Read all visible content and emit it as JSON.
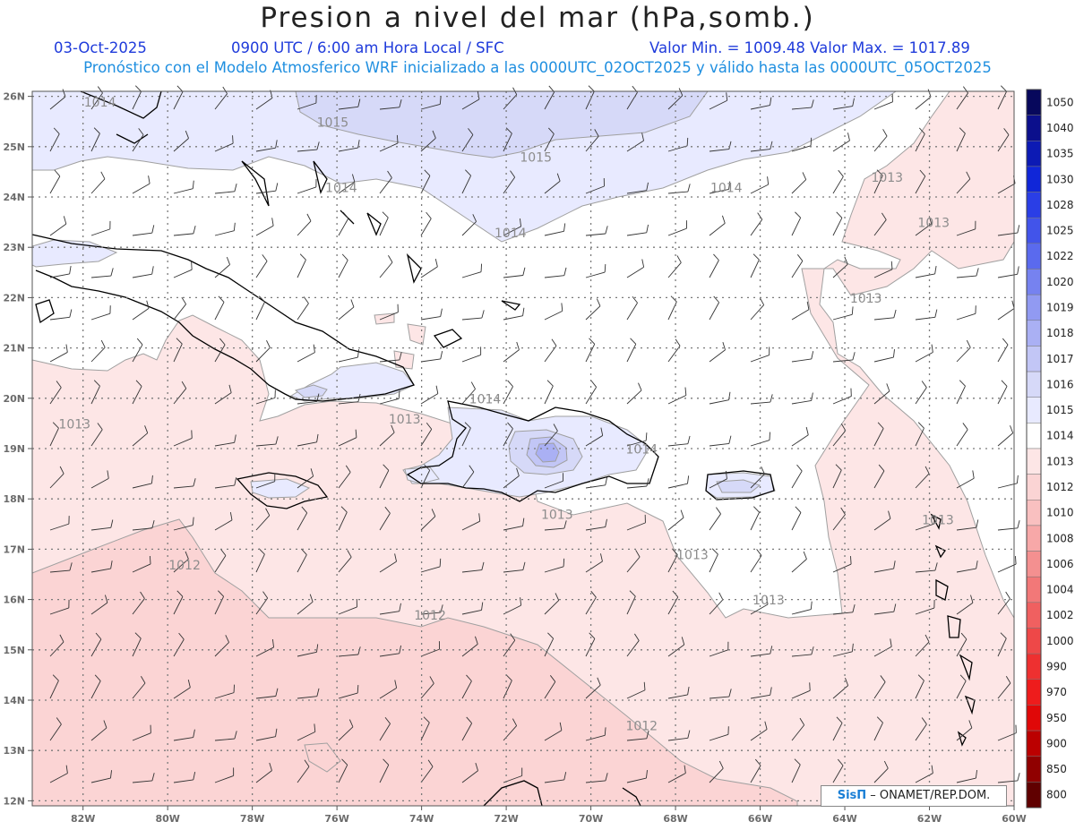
{
  "title": "Presion a nivel del mar (hPa,somb.)",
  "date": "03-Oct-2025",
  "time_info": "0900 UTC / 6:00 am Hora Local / SFC",
  "min_max": "Valor Min. = 1009.48  Valor Max. = 1017.89",
  "model_info": "Pronóstico con el Modelo Atmosferico WRF inicializado a las 0000UTC_02OCT2025 y válido hasta las  0000UTC_05OCT2025",
  "credit": {
    "brand": "SisΠ",
    "text": " – ONAMET/REP.DOM."
  },
  "map": {
    "lon_range": [
      -83.2,
      -60
    ],
    "lat_range": [
      11.9,
      26.1
    ],
    "lat_labels": [
      "26N",
      "25N",
      "24N",
      "23N",
      "22N",
      "21N",
      "20N",
      "19N",
      "18N",
      "17N",
      "16N",
      "15N",
      "14N",
      "13N",
      "12N"
    ],
    "lat_values": [
      26,
      25,
      24,
      23,
      22,
      21,
      20,
      19,
      18,
      17,
      16,
      15,
      14,
      13,
      12
    ],
    "lon_labels": [
      "82W",
      "80W",
      "78W",
      "76W",
      "74W",
      "72W",
      "70W",
      "68W",
      "66W",
      "64W",
      "62W",
      "60W"
    ],
    "lon_values": [
      -82,
      -80,
      -78,
      -76,
      -74,
      -72,
      -70,
      -68,
      -66,
      -64,
      -62,
      -60
    ],
    "isobar_labels": [
      {
        "text": "1014",
        "lon": -81.6,
        "lat": 25.8
      },
      {
        "text": "1015",
        "lon": -76.1,
        "lat": 25.4
      },
      {
        "text": "1015",
        "lon": -71.3,
        "lat": 24.7
      },
      {
        "text": "1014",
        "lon": -75.9,
        "lat": 24.1
      },
      {
        "text": "1014",
        "lon": -66.8,
        "lat": 24.1
      },
      {
        "text": "1013",
        "lon": -63.0,
        "lat": 24.3
      },
      {
        "text": "1014",
        "lon": -71.9,
        "lat": 23.2
      },
      {
        "text": "1013",
        "lon": -61.9,
        "lat": 23.4
      },
      {
        "text": "1013",
        "lon": -63.5,
        "lat": 21.9
      },
      {
        "text": "1014",
        "lon": -72.5,
        "lat": 19.9
      },
      {
        "text": "1013",
        "lon": -82.2,
        "lat": 19.4
      },
      {
        "text": "1013",
        "lon": -74.4,
        "lat": 19.5
      },
      {
        "text": "1014",
        "lon": -68.8,
        "lat": 18.9
      },
      {
        "text": "1013",
        "lon": -70.8,
        "lat": 17.6
      },
      {
        "text": "1013",
        "lon": -61.8,
        "lat": 17.5
      },
      {
        "text": "1013",
        "lon": -67.6,
        "lat": 16.8
      },
      {
        "text": "1012",
        "lon": -79.6,
        "lat": 16.6
      },
      {
        "text": "1013",
        "lon": -65.8,
        "lat": 15.9
      },
      {
        "text": "1012",
        "lon": -73.8,
        "lat": 15.6
      },
      {
        "text": "1012",
        "lon": -68.8,
        "lat": 13.4
      }
    ]
  },
  "colorbar": {
    "levels": [
      "1050",
      "1040",
      "1035",
      "1030",
      "1028",
      "1025",
      "1022",
      "1020",
      "1019",
      "1018",
      "1017",
      "1016",
      "1015",
      "1014",
      "1013",
      "1012",
      "1010",
      "1008",
      "1006",
      "1004",
      "1002",
      "1000",
      "990",
      "970",
      "950",
      "900",
      "850",
      "800"
    ],
    "colors": [
      "#07085c",
      "#0b0f8c",
      "#0c1ab4",
      "#1026d8",
      "#2a3ee6",
      "#4254ea",
      "#5a6aee",
      "#7682f0",
      "#919af2",
      "#aab0f4",
      "#c2c6f6",
      "#d6d9f8",
      "#e8eaff",
      "#ffffff",
      "#fde6e6",
      "#fbd4d4",
      "#f9c0c0",
      "#f7a8a8",
      "#f49090",
      "#f27878",
      "#f06060",
      "#ee4848",
      "#ee3030",
      "#ee1c1c",
      "#e00808",
      "#bb0000",
      "#900000",
      "#600000"
    ]
  }
}
